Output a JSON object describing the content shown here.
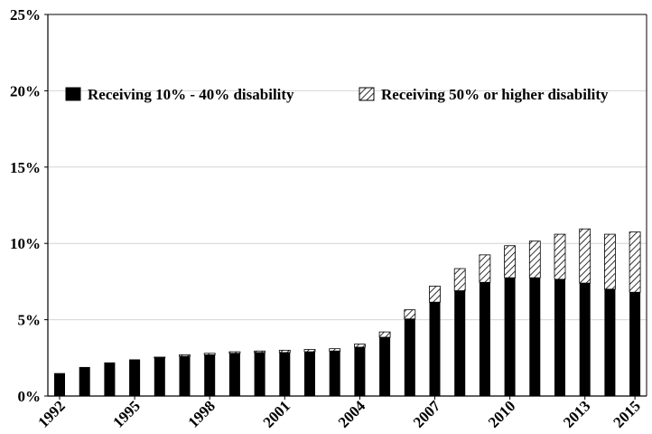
{
  "chart_data": {
    "type": "bar",
    "stacked": true,
    "title": "",
    "xlabel": "",
    "ylabel": "",
    "ylim": [
      0,
      25
    ],
    "y_ticks": [
      "0%",
      "5%",
      "10%",
      "15%",
      "20%",
      "25%"
    ],
    "x_tick_labels": [
      "1992",
      "1995",
      "1998",
      "2001",
      "2004",
      "2007",
      "2010",
      "2013",
      "2015"
    ],
    "categories": [
      "1992",
      "1993",
      "1994",
      "1995",
      "1996",
      "1997",
      "1998",
      "1999",
      "2000",
      "2001",
      "2002",
      "2003",
      "2004",
      "2005",
      "2006",
      "2007",
      "2008",
      "2009",
      "2010",
      "2011",
      "2012",
      "2013",
      "2014",
      "2015"
    ],
    "series": [
      {
        "name": "Receiving 10% - 40% disability",
        "pattern": "solid",
        "color": "#000000",
        "values": [
          1.5,
          1.9,
          2.2,
          2.4,
          2.5,
          2.6,
          2.7,
          2.8,
          2.85,
          2.85,
          2.9,
          2.95,
          3.2,
          3.85,
          5.05,
          6.15,
          6.9,
          7.45,
          7.75,
          7.75,
          7.65,
          7.4,
          7.0,
          6.8
        ]
      },
      {
        "name": "Receiving 50% or higher disability",
        "pattern": "hatched",
        "color": "#000000",
        "values": [
          0.0,
          0.0,
          0.0,
          0.0,
          0.05,
          0.1,
          0.1,
          0.1,
          0.1,
          0.15,
          0.15,
          0.15,
          0.2,
          0.35,
          0.6,
          1.05,
          1.45,
          1.8,
          2.1,
          2.4,
          2.95,
          3.55,
          3.6,
          3.95
        ]
      }
    ],
    "grid": true,
    "legend_position": "top-center"
  }
}
